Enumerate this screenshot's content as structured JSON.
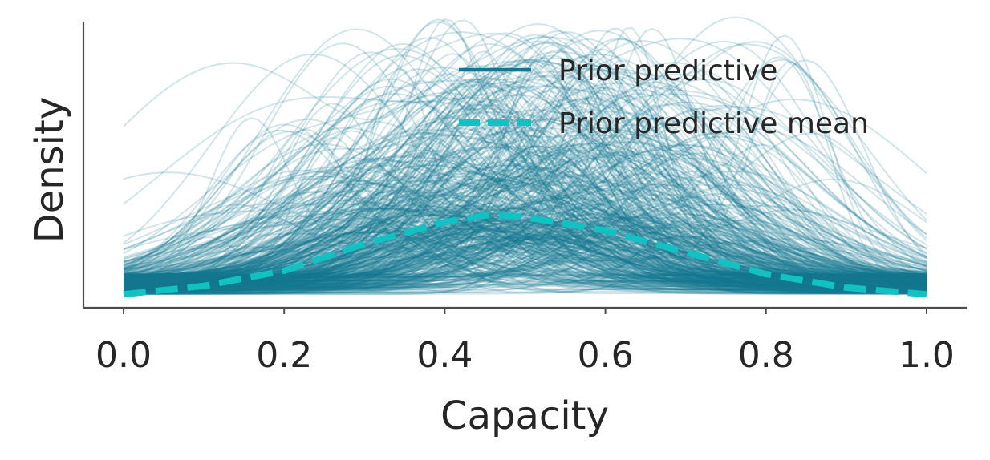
{
  "chart_data": {
    "type": "line",
    "xlabel": "Capacity",
    "ylabel": "Density",
    "xlim": [
      -0.05,
      1.05
    ],
    "ylim": [
      -0.08,
      1.62
    ],
    "x_ticks": [
      "0.0",
      "0.2",
      "0.4",
      "0.6",
      "0.8",
      "1.0"
    ],
    "y_ticks_shown": false,
    "grid": false,
    "legend_placement": "top-right",
    "colors": {
      "prior_predictive": "#13788f",
      "prior_predictive_mean": "#12c1c1"
    },
    "series": [
      {
        "name": "Prior predictive",
        "style": "many thin translucent curves",
        "approx_samples": 500,
        "approx_peak_range": [
          0.3,
          1.55
        ],
        "approx_peak_location_range": [
          0.1,
          0.9
        ]
      },
      {
        "name": "Prior predictive mean",
        "style": "dashed",
        "x": [
          0.0,
          0.1,
          0.2,
          0.3,
          0.4,
          0.45,
          0.47,
          0.5,
          0.6,
          0.7,
          0.8,
          0.9,
          1.0
        ],
        "y": [
          0.0,
          0.05,
          0.14,
          0.3,
          0.43,
          0.47,
          0.47,
          0.46,
          0.38,
          0.25,
          0.12,
          0.04,
          0.0
        ]
      }
    ]
  }
}
